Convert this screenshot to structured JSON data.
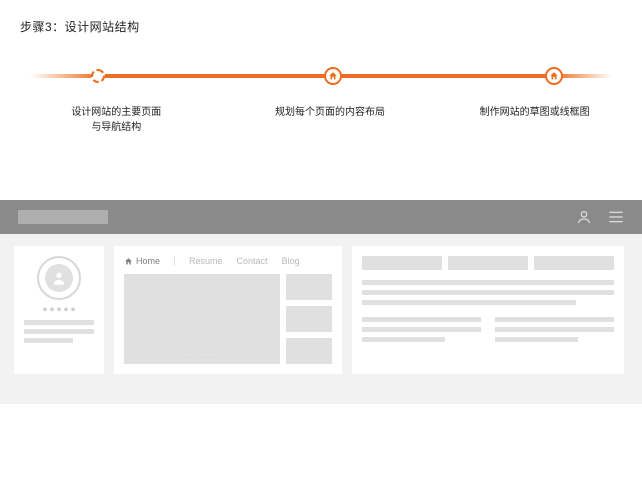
{
  "accent_color": "#ed6c1f",
  "title": "步骤3：设计网站结构",
  "steps": [
    {
      "pos_pct": 12,
      "kind": "current",
      "label": "设计网站的主要页面\n与导航结构"
    },
    {
      "pos_pct": 52,
      "kind": "done",
      "label": "规划每个页面的内容布局"
    },
    {
      "pos_pct": 90,
      "kind": "done",
      "label": "制作网站的草图或线框图"
    }
  ],
  "segments": [
    {
      "from_pct": 0,
      "to_pct": 12,
      "gradient_from": "#ffffff",
      "gradient_to": "#ed6c1f"
    },
    {
      "from_pct": 12,
      "to_pct": 52,
      "gradient_from": "#ed6c1f",
      "gradient_to": "#ed6c1f"
    },
    {
      "from_pct": 52,
      "to_pct": 90,
      "gradient_from": "#ed6c1f",
      "gradient_to": "#ed6c1f"
    },
    {
      "from_pct": 90,
      "to_pct": 100,
      "gradient_from": "#ed6c1f",
      "gradient_to": "#ffffff"
    }
  ],
  "mockup": {
    "nav_items": [
      "Home",
      "Resume",
      "Contact",
      "Blog"
    ],
    "big_image_caption": "···· ···· ····"
  }
}
